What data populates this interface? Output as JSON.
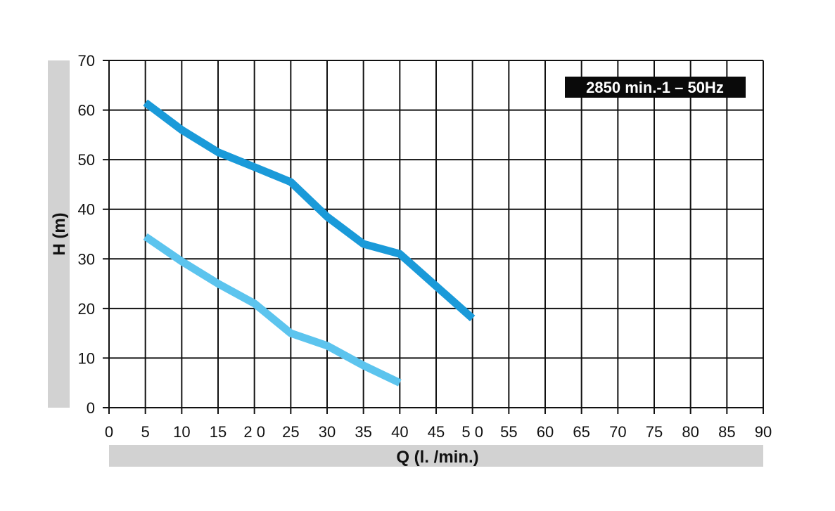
{
  "chart_data": {
    "type": "line",
    "xlabel": "Q (l. /min.)",
    "ylabel": "H (m)",
    "xlim": [
      0,
      90
    ],
    "ylim": [
      0,
      70
    ],
    "x_ticks": [
      "0",
      "5",
      "10",
      "15",
      "2 0",
      "25",
      "30",
      "35",
      "40",
      "45",
      "5 0",
      "55",
      "60",
      "65",
      "70",
      "75",
      "80",
      "85",
      "90"
    ],
    "y_ticks": [
      "0",
      "10",
      "20",
      "30",
      "40",
      "50",
      "60",
      "70"
    ],
    "grid": true,
    "annotation": "2850 min.-1 – 50Hz",
    "series": [
      {
        "color": "#1a9ad9",
        "points": [
          [
            5,
            61.5
          ],
          [
            10,
            56
          ],
          [
            15,
            51.5
          ],
          [
            20,
            48.5
          ],
          [
            25,
            45.5
          ],
          [
            30,
            38.5
          ],
          [
            35,
            33
          ],
          [
            40,
            31
          ],
          [
            45,
            24.5
          ],
          [
            50,
            18
          ]
        ]
      },
      {
        "color": "#5cc4ee",
        "points": [
          [
            5,
            34.5
          ],
          [
            10,
            29.5
          ],
          [
            15,
            25
          ],
          [
            20,
            21
          ],
          [
            25,
            15
          ],
          [
            30,
            12.5
          ],
          [
            35,
            8.5
          ],
          [
            40,
            5
          ]
        ]
      }
    ]
  }
}
